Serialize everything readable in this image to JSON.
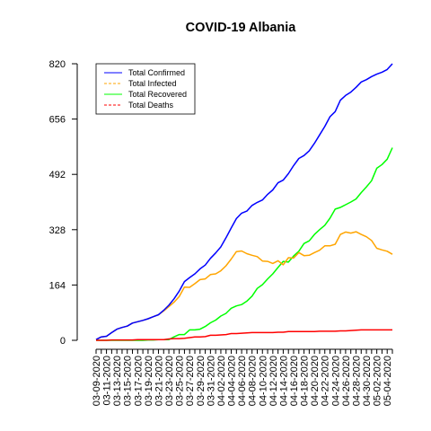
{
  "chart_data": {
    "type": "line",
    "title": "COVID-19 Albania",
    "xlabel": "",
    "ylabel": "",
    "ylim": [
      0,
      820
    ],
    "yticks": [
      0,
      164,
      328,
      492,
      656,
      820
    ],
    "x": [
      "03-09-2020",
      "03-10-2020",
      "03-11-2020",
      "03-12-2020",
      "03-13-2020",
      "03-14-2020",
      "03-15-2020",
      "03-16-2020",
      "03-17-2020",
      "03-18-2020",
      "03-19-2020",
      "03-20-2020",
      "03-21-2020",
      "03-22-2020",
      "03-23-2020",
      "03-24-2020",
      "03-25-2020",
      "03-26-2020",
      "03-27-2020",
      "03-28-2020",
      "03-29-2020",
      "03-30-2020",
      "03-31-2020",
      "04-01-2020",
      "04-02-2020",
      "04-03-2020",
      "04-04-2020",
      "04-05-2020",
      "04-06-2020",
      "04-07-2020",
      "04-08-2020",
      "04-09-2020",
      "04-10-2020",
      "04-11-2020",
      "04-12-2020",
      "04-13-2020",
      "04-14-2020",
      "04-15-2020",
      "04-16-2020",
      "04-17-2020",
      "04-18-2020",
      "04-19-2020",
      "04-20-2020",
      "04-21-2020",
      "04-22-2020",
      "04-23-2020",
      "04-24-2020",
      "04-25-2020",
      "04-26-2020",
      "04-27-2020",
      "04-28-2020",
      "04-29-2020",
      "04-30-2020",
      "05-01-2020",
      "05-02-2020",
      "05-03-2020",
      "05-04-2020",
      "05-05-2020"
    ],
    "xticklabels": [
      "03-09-2020",
      "03-11-2020",
      "03-13-2020",
      "03-15-2020",
      "03-17-2020",
      "03-19-2020",
      "03-21-2020",
      "03-23-2020",
      "03-25-2020",
      "03-27-2020",
      "03-29-2020",
      "03-31-2020",
      "04-02-2020",
      "04-04-2020",
      "04-06-2020",
      "04-08-2020",
      "04-10-2020",
      "04-12-2020",
      "04-14-2020",
      "04-16-2020",
      "04-18-2020",
      "04-20-2020",
      "04-22-2020",
      "04-24-2020",
      "04-26-2020",
      "04-28-2020",
      "04-30-2020",
      "05-02-2020",
      "05-04-2020"
    ],
    "legend_position": "top-left",
    "grid": false,
    "series": [
      {
        "name": "Total Confirmed",
        "color": "#0000ff",
        "dash": "solid",
        "values": [
          2,
          10,
          12,
          23,
          33,
          38,
          42,
          51,
          55,
          59,
          64,
          70,
          76,
          89,
          104,
          123,
          146,
          174,
          186,
          197,
          212,
          223,
          243,
          259,
          277,
          304,
          333,
          361,
          377,
          383,
          400,
          409,
          416,
          433,
          446,
          467,
          475,
          494,
          518,
          539,
          548,
          562,
          584,
          609,
          634,
          663,
          678,
          712,
          726,
          736,
          750,
          766,
          773,
          782,
          789,
          795,
          803,
          820
        ]
      },
      {
        "name": "Total Infected",
        "color": "#ffa500",
        "dash": "dashed",
        "values": [
          2,
          10,
          12,
          23,
          33,
          38,
          42,
          51,
          55,
          59,
          64,
          70,
          76,
          87,
          100,
          113,
          130,
          158,
          157,
          168,
          180,
          182,
          195,
          197,
          206,
          221,
          241,
          263,
          265,
          257,
          252,
          248,
          235,
          234,
          228,
          236,
          224,
          245,
          244,
          260,
          251,
          252,
          260,
          267,
          280,
          280,
          285,
          314,
          321,
          318,
          322,
          314,
          307,
          296,
          273,
          268,
          264,
          255
        ]
      },
      {
        "name": "Total Recovered",
        "color": "#00ff00",
        "dash": "solid",
        "values": [
          0,
          0,
          0,
          0,
          0,
          0,
          0,
          0,
          0,
          0,
          1,
          1,
          2,
          2,
          2,
          10,
          17,
          17,
          31,
          31,
          33,
          41,
          52,
          60,
          72,
          80,
          95,
          102,
          106,
          116,
          131,
          154,
          165,
          182,
          197,
          216,
          234,
          232,
          250,
          264,
          287,
          295,
          314,
          328,
          341,
          362,
          389,
          394,
          402,
          410,
          419,
          438,
          455,
          473,
          510,
          521,
          537,
          571
        ]
      },
      {
        "name": "Total Deaths",
        "color": "#ff0000",
        "dash": "dashed",
        "values": [
          0,
          0,
          0,
          1,
          1,
          1,
          1,
          1,
          2,
          2,
          2,
          2,
          2,
          2,
          4,
          5,
          5,
          6,
          8,
          10,
          10,
          11,
          15,
          15,
          16,
          17,
          20,
          20,
          21,
          22,
          23,
          23,
          23,
          23,
          23,
          24,
          24,
          26,
          26,
          26,
          26,
          26,
          26,
          27,
          27,
          27,
          27,
          28,
          28,
          29,
          30,
          31,
          31,
          31,
          31,
          31,
          31,
          31
        ]
      }
    ]
  }
}
